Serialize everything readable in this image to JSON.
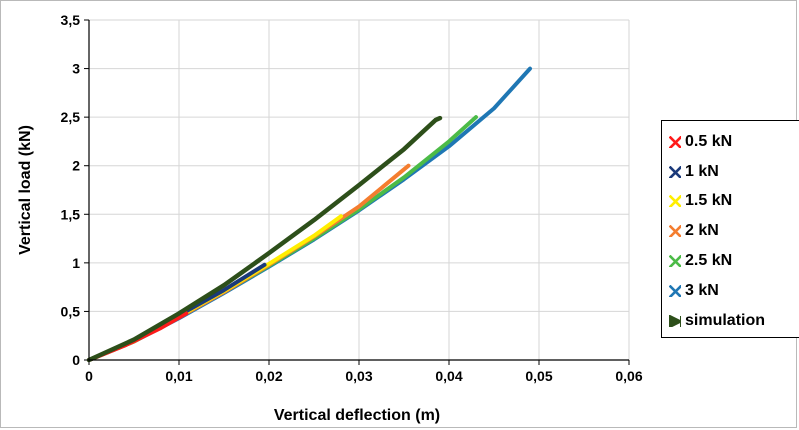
{
  "chart_data": {
    "type": "line",
    "xlabel": "Vertical deflection (m)",
    "ylabel": "Vertical load (kN)",
    "xlim": [
      0,
      0.06
    ],
    "ylim": [
      0,
      3.5
    ],
    "x_ticks": [
      "0",
      "0,01",
      "0,02",
      "0,03",
      "0,04",
      "0,05",
      "0,06"
    ],
    "y_ticks": [
      "0",
      "0,5",
      "1",
      "1,5",
      "2",
      "2,5",
      "3",
      "3,5"
    ],
    "grid": true,
    "legend_position": "right",
    "series": [
      {
        "name": "3  kN",
        "color": "#1f77b4",
        "marker": "x",
        "points": [
          [
            0,
            0
          ],
          [
            0.005,
            0.19
          ],
          [
            0.01,
            0.43
          ],
          [
            0.015,
            0.69
          ],
          [
            0.02,
            0.96
          ],
          [
            0.025,
            1.24
          ],
          [
            0.03,
            1.54
          ],
          [
            0.035,
            1.86
          ],
          [
            0.04,
            2.2
          ],
          [
            0.045,
            2.59
          ],
          [
            0.049,
            3.0
          ]
        ]
      },
      {
        "name": "2.5 kN",
        "color": "#4cbb47",
        "marker": "x",
        "points": [
          [
            0,
            0
          ],
          [
            0.005,
            0.19
          ],
          [
            0.01,
            0.44
          ],
          [
            0.015,
            0.7
          ],
          [
            0.02,
            0.97
          ],
          [
            0.025,
            1.25
          ],
          [
            0.03,
            1.55
          ],
          [
            0.035,
            1.88
          ],
          [
            0.04,
            2.25
          ],
          [
            0.043,
            2.5
          ]
        ]
      },
      {
        "name": "2 kN",
        "color": "#f47d2f",
        "marker": "x",
        "points": [
          [
            0,
            0
          ],
          [
            0.005,
            0.19
          ],
          [
            0.01,
            0.44
          ],
          [
            0.015,
            0.7
          ],
          [
            0.02,
            0.98
          ],
          [
            0.025,
            1.27
          ],
          [
            0.03,
            1.58
          ],
          [
            0.0355,
            2.0
          ]
        ]
      },
      {
        "name": "1.5 kN",
        "color": "#ffee00",
        "marker": "x",
        "points": [
          [
            0,
            0
          ],
          [
            0.005,
            0.2
          ],
          [
            0.01,
            0.45
          ],
          [
            0.015,
            0.71
          ],
          [
            0.02,
            0.99
          ],
          [
            0.025,
            1.28
          ],
          [
            0.028,
            1.48
          ]
        ]
      },
      {
        "name": "1 kN",
        "color": "#1b3a7a",
        "marker": "x",
        "points": [
          [
            0,
            0
          ],
          [
            0.005,
            0.2
          ],
          [
            0.01,
            0.46
          ],
          [
            0.015,
            0.72
          ],
          [
            0.0195,
            0.98
          ]
        ]
      },
      {
        "name": "0.5 kN",
        "color": "#ff1a1a",
        "marker": "x",
        "points": [
          [
            0,
            0
          ],
          [
            0.004,
            0.15
          ],
          [
            0.008,
            0.33
          ],
          [
            0.0108,
            0.48
          ]
        ]
      },
      {
        "name": "simulation",
        "color": "#2d4f1a",
        "marker": "bowtie",
        "points": [
          [
            0,
            0
          ],
          [
            0.005,
            0.21
          ],
          [
            0.01,
            0.48
          ],
          [
            0.015,
            0.77
          ],
          [
            0.02,
            1.1
          ],
          [
            0.025,
            1.44
          ],
          [
            0.03,
            1.8
          ],
          [
            0.035,
            2.17
          ],
          [
            0.0385,
            2.47
          ],
          [
            0.039,
            2.49
          ]
        ]
      }
    ],
    "legend_order": [
      "0.5 kN",
      "1 kN",
      "1.5 kN",
      "2 kN",
      "2.5 kN",
      "3  kN",
      "simulation"
    ]
  }
}
